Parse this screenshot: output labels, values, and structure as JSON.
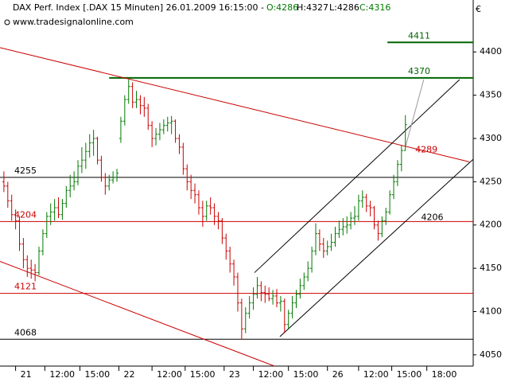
{
  "chart_data": {
    "type": "ohlc",
    "title": "DAX Perf. Index [.DAX  15 Minuten] 26.01.2009 16:15:00 -",
    "ohlc_labels": [
      "O:4286",
      "H:4327",
      "L:4286",
      "C:4316"
    ],
    "source": "www.tradesignalonline.com",
    "currency": "€",
    "up_color": "#007a00",
    "down_color": "#cc0000",
    "ohlc": [
      [
        4250,
        4262,
        4238,
        4245
      ],
      [
        4245,
        4250,
        4220,
        4228
      ],
      [
        4228,
        4235,
        4205,
        4212
      ],
      [
        4212,
        4218,
        4195,
        4205
      ],
      [
        4205,
        4210,
        4170,
        4178
      ],
      [
        4178,
        4185,
        4150,
        4160
      ],
      [
        4160,
        4165,
        4140,
        4150
      ],
      [
        4150,
        4160,
        4138,
        4148
      ],
      [
        4148,
        4155,
        4135,
        4145
      ],
      [
        4145,
        4175,
        4142,
        4170
      ],
      [
        4170,
        4195,
        4165,
        4190
      ],
      [
        4190,
        4215,
        4185,
        4210
      ],
      [
        4210,
        4225,
        4200,
        4215
      ],
      [
        4215,
        4230,
        4205,
        4220
      ],
      [
        4220,
        4232,
        4208,
        4212
      ],
      [
        4212,
        4230,
        4206,
        4225
      ],
      [
        4225,
        4245,
        4220,
        4240
      ],
      [
        4240,
        4258,
        4232,
        4245
      ],
      [
        4245,
        4262,
        4240,
        4250
      ],
      [
        4250,
        4275,
        4246,
        4268
      ],
      [
        4268,
        4290,
        4260,
        4275
      ],
      [
        4275,
        4295,
        4265,
        4285
      ],
      [
        4285,
        4305,
        4278,
        4295
      ],
      [
        4295,
        4310,
        4280,
        4300
      ],
      [
        4300,
        4302,
        4270,
        4275
      ],
      [
        4275,
        4280,
        4250,
        4255
      ],
      [
        4255,
        4260,
        4235,
        4245
      ],
      [
        4245,
        4258,
        4240,
        4252
      ],
      [
        4252,
        4262,
        4248,
        4255
      ],
      [
        4255,
        4265,
        4250,
        4260
      ],
      [
        4300,
        4325,
        4295,
        4320
      ],
      [
        4320,
        4350,
        4315,
        4345
      ],
      [
        4345,
        4368,
        4340,
        4360
      ],
      [
        4360,
        4365,
        4335,
        4342
      ],
      [
        4342,
        4355,
        4335,
        4345
      ],
      [
        4345,
        4350,
        4328,
        4338
      ],
      [
        4338,
        4348,
        4325,
        4335
      ],
      [
        4335,
        4340,
        4310,
        4315
      ],
      [
        4315,
        4320,
        4290,
        4300
      ],
      [
        4300,
        4312,
        4292,
        4305
      ],
      [
        4305,
        4318,
        4298,
        4310
      ],
      [
        4310,
        4322,
        4305,
        4315
      ],
      [
        4315,
        4325,
        4308,
        4318
      ],
      [
        4318,
        4326,
        4305,
        4320
      ],
      [
        4320,
        4322,
        4295,
        4300
      ],
      [
        4300,
        4305,
        4282,
        4290
      ],
      [
        4290,
        4295,
        4258,
        4265
      ],
      [
        4265,
        4270,
        4240,
        4250
      ],
      [
        4250,
        4258,
        4230,
        4240
      ],
      [
        4240,
        4248,
        4225,
        4235
      ],
      [
        4235,
        4240,
        4212,
        4220
      ],
      [
        4220,
        4228,
        4198,
        4210
      ],
      [
        4210,
        4228,
        4205,
        4222
      ],
      [
        4222,
        4232,
        4212,
        4220
      ],
      [
        4220,
        4225,
        4200,
        4210
      ],
      [
        4210,
        4215,
        4195,
        4205
      ],
      [
        4205,
        4208,
        4178,
        4185
      ],
      [
        4185,
        4190,
        4160,
        4170
      ],
      [
        4170,
        4175,
        4145,
        4155
      ],
      [
        4155,
        4160,
        4130,
        4140
      ],
      [
        4140,
        4145,
        4100,
        4110
      ],
      [
        4110,
        4115,
        4068,
        4080
      ],
      [
        4080,
        4105,
        4075,
        4098
      ],
      [
        4098,
        4118,
        4092,
        4110
      ],
      [
        4110,
        4128,
        4102,
        4120
      ],
      [
        4120,
        4140,
        4115,
        4130
      ],
      [
        4130,
        4135,
        4112,
        4122
      ],
      [
        4122,
        4130,
        4110,
        4120
      ],
      [
        4120,
        4128,
        4112,
        4115
      ],
      [
        4115,
        4125,
        4108,
        4118
      ],
      [
        4118,
        4126,
        4105,
        4110
      ],
      [
        4110,
        4118,
        4100,
        4112
      ],
      [
        4112,
        4115,
        4075,
        4085
      ],
      [
        4085,
        4102,
        4080,
        4098
      ],
      [
        4098,
        4118,
        4092,
        4110
      ],
      [
        4110,
        4125,
        4104,
        4120
      ],
      [
        4120,
        4138,
        4115,
        4130
      ],
      [
        4130,
        4145,
        4125,
        4140
      ],
      [
        4140,
        4158,
        4135,
        4150
      ],
      [
        4150,
        4175,
        4145,
        4170
      ],
      [
        4170,
        4202,
        4165,
        4190
      ],
      [
        4190,
        4195,
        4170,
        4178
      ],
      [
        4178,
        4185,
        4162,
        4170
      ],
      [
        4170,
        4182,
        4165,
        4175
      ],
      [
        4175,
        4190,
        4170,
        4180
      ],
      [
        4180,
        4198,
        4175,
        4190
      ],
      [
        4190,
        4205,
        4185,
        4195
      ],
      [
        4195,
        4208,
        4188,
        4198
      ],
      [
        4198,
        4210,
        4190,
        4200
      ],
      [
        4200,
        4215,
        4195,
        4208
      ],
      [
        4208,
        4222,
        4200,
        4210
      ],
      [
        4210,
        4235,
        4205,
        4228
      ],
      [
        4228,
        4240,
        4220,
        4232
      ],
      [
        4232,
        4236,
        4215,
        4222
      ],
      [
        4222,
        4228,
        4210,
        4220
      ],
      [
        4220,
        4222,
        4195,
        4200
      ],
      [
        4200,
        4205,
        4182,
        4190
      ],
      [
        4190,
        4210,
        4186,
        4205
      ],
      [
        4205,
        4220,
        4200,
        4215
      ],
      [
        4215,
        4240,
        4212,
        4235
      ],
      [
        4235,
        4258,
        4230,
        4250
      ],
      [
        4250,
        4275,
        4245,
        4270
      ],
      [
        4270,
        4292,
        4262,
        4286
      ],
      [
        4286,
        4327,
        4286,
        4316
      ]
    ],
    "xlim": [
      -1,
      120.4
    ],
    "xticks": [
      {
        "value": 3,
        "label": "21"
      },
      {
        "value": 10.5,
        "label": "12:00"
      },
      {
        "value": 19.5,
        "label": "15:00"
      },
      {
        "value": 29.5,
        "label": "22"
      },
      {
        "value": 38,
        "label": "12:00"
      },
      {
        "value": 46.5,
        "label": "15:00"
      },
      {
        "value": 56.5,
        "label": "23"
      },
      {
        "value": 64,
        "label": "12:00"
      },
      {
        "value": 73,
        "label": "15:00"
      },
      {
        "value": 83,
        "label": "26"
      },
      {
        "value": 91,
        "label": "12:00"
      },
      {
        "value": 99.5,
        "label": "15:00"
      },
      {
        "value": 108.5,
        "label": "18:00"
      }
    ],
    "ylim": [
      4037,
      4460
    ],
    "yticks": [
      4050,
      4100,
      4150,
      4200,
      4250,
      4300,
      4350,
      4400
    ],
    "hlines": [
      {
        "value": 4255,
        "color": "#000000",
        "label_side": "left"
      },
      {
        "value": 4068,
        "color": "#000000",
        "label_side": "left"
      },
      {
        "value": 4204,
        "color": "#cc0000",
        "label_side": "left"
      },
      {
        "value": 4121,
        "color": "#cc0000",
        "label_side": "left"
      },
      {
        "value": 4370,
        "color": "#006400",
        "label_side": "right",
        "from": 27
      },
      {
        "value": 4411,
        "color": "#006400",
        "label_side": "right",
        "from": 98.4
      }
    ],
    "trendlines": [
      {
        "x": [
          -1,
          119.4
        ],
        "y": [
          4405,
          4273
        ],
        "color": "#cc0000",
        "label": 4289,
        "label_at": 103.5
      },
      {
        "x": [
          -1,
          69.4
        ],
        "y": [
          4158,
          4037
        ],
        "color": "#cc0000"
      },
      {
        "x": [
          64.3,
          116.9
        ],
        "y": [
          4145,
          4368
        ],
        "color": "#000000"
      },
      {
        "x": [
          70.8,
          120.4
        ],
        "y": [
          4071,
          4276
        ],
        "color": "#000000",
        "label": 4206,
        "label_at": 105
      },
      {
        "x": [
          103,
          107.7
        ],
        "y": [
          4290,
          4368
        ],
        "color": "#999999"
      }
    ]
  }
}
